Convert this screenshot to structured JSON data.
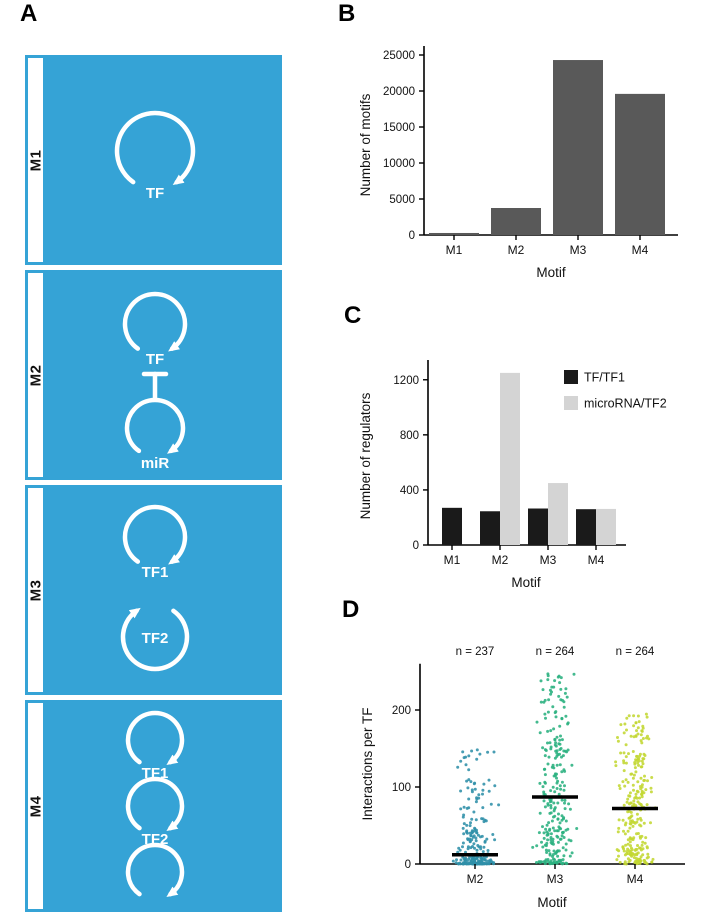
{
  "panels": {
    "a_label": "A",
    "b_label": "B",
    "c_label": "C",
    "d_label": "D"
  },
  "panel_a": {
    "box_color": "#35a3d6",
    "motifs": [
      {
        "id": "M1",
        "nodes": [
          "TF"
        ]
      },
      {
        "id": "M2",
        "nodes": [
          "TF",
          "miR"
        ]
      },
      {
        "id": "M3",
        "nodes": [
          "TF1",
          "TF2"
        ]
      },
      {
        "id": "M4",
        "nodes": [
          "TF1",
          "TF2"
        ]
      }
    ]
  },
  "chart_data": [
    {
      "panel": "B",
      "type": "bar",
      "categories": [
        "M1",
        "M2",
        "M3",
        "M4"
      ],
      "values": [
        280,
        3750,
        24300,
        19600
      ],
      "xlabel": "Motif",
      "ylabel": "Number of motifs",
      "ylim": [
        0,
        25000
      ],
      "yticks": [
        0,
        5000,
        10000,
        15000,
        20000,
        25000
      ],
      "bar_color": "#595959",
      "grid": false
    },
    {
      "panel": "C",
      "type": "bar",
      "categories": [
        "M1",
        "M2",
        "M3",
        "M4"
      ],
      "series": [
        {
          "name": "TF/TF1",
          "color": "#1a1a1a",
          "values": [
            270,
            245,
            265,
            260
          ]
        },
        {
          "name": "microRNA/TF2",
          "color": "#d4d4d4",
          "values": [
            null,
            1250,
            450,
            262
          ]
        }
      ],
      "xlabel": "Motif",
      "ylabel": "Number of regulators",
      "ylim": [
        0,
        1300
      ],
      "yticks": [
        0,
        400,
        800,
        1200
      ],
      "legend_position": "right",
      "grid": false
    },
    {
      "panel": "D",
      "type": "scatter",
      "subtype": "jitter-strip",
      "categories": [
        "M2",
        "M3",
        "M4"
      ],
      "groups": [
        {
          "name": "M2",
          "n_label": "n = 237",
          "n": 237,
          "median": 12,
          "max": 150,
          "color": "#2f8fa9"
        },
        {
          "name": "M3",
          "n_label": "n = 264",
          "n": 264,
          "median": 87,
          "max": 250,
          "color": "#2ab07f"
        },
        {
          "name": "M4",
          "n_label": "n = 264",
          "n": 264,
          "median": 72,
          "max": 195,
          "color": "#c3d732"
        }
      ],
      "xlabel": "Motif",
      "ylabel": "Interactions per TF",
      "ylim": [
        0,
        260
      ],
      "yticks": [
        0,
        100,
        200
      ],
      "median_color": "#000000"
    }
  ]
}
